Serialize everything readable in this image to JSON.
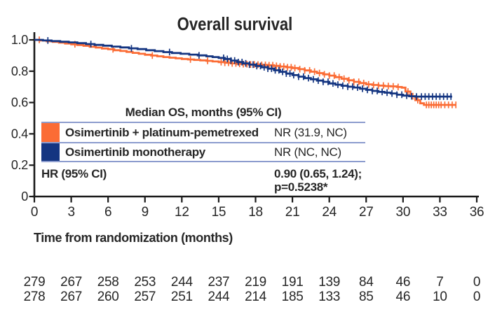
{
  "stats_table": {
    "header": "Median OS, months (95% CI)",
    "rows": [
      {
        "label": "Osimertinib + platinum-pemetrexed",
        "value": "NR (31.9, NC)"
      },
      {
        "label": "Osimertinib monotherapy",
        "value": "NR (NC, NC)"
      }
    ],
    "hr_label": "HR (95% CI)",
    "hr_value_line1": "0.90 (0.65, 1.24);",
    "hr_value_line2": "p=0.5238*"
  },
  "colors": {
    "combo_orange": "#FB6C35",
    "mono_navy": "#143581",
    "table_rule": "#8C9CCE",
    "axis": "#1A1A1A",
    "text": "#262626"
  },
  "chart_data": {
    "type": "line",
    "subtype": "kaplan-meier-step",
    "title": "Overall survival",
    "xlabel": "Time from randomization (months)",
    "ylabel": "",
    "xlim": [
      0,
      36
    ],
    "ylim": [
      0,
      1.0
    ],
    "grid": false,
    "xticks": [
      0,
      3,
      6,
      9,
      12,
      15,
      18,
      21,
      24,
      27,
      30,
      33,
      36
    ],
    "yticks": [
      {
        "label": "1.0",
        "value": 1.0
      },
      {
        "label": "0.8",
        "value": 0.8
      },
      {
        "label": "0.6",
        "value": 0.6
      },
      {
        "label": "0.4",
        "value": 0.4
      },
      {
        "label": "0.2",
        "value": 0.2
      },
      {
        "label": "0",
        "value": 0.0
      }
    ],
    "series": [
      {
        "name": "Osimertinib + platinum-pemetrexed",
        "color": "#FB6C35",
        "steps": [
          [
            0,
            1.0
          ],
          [
            0.5,
            0.996
          ],
          [
            1.0,
            0.991
          ],
          [
            1.5,
            0.987
          ],
          [
            2.0,
            0.982
          ],
          [
            2.5,
            0.977
          ],
          [
            3.0,
            0.972
          ],
          [
            3.5,
            0.967
          ],
          [
            4.0,
            0.962
          ],
          [
            4.5,
            0.956
          ],
          [
            5.0,
            0.951
          ],
          [
            5.5,
            0.945
          ],
          [
            6.0,
            0.94
          ],
          [
            6.5,
            0.934
          ],
          [
            7.0,
            0.929
          ],
          [
            7.5,
            0.923
          ],
          [
            8.0,
            0.917
          ],
          [
            8.5,
            0.911
          ],
          [
            9.0,
            0.905
          ],
          [
            9.5,
            0.9
          ],
          [
            10.0,
            0.895
          ],
          [
            10.5,
            0.89
          ],
          [
            11.0,
            0.886
          ],
          [
            11.5,
            0.882
          ],
          [
            12.0,
            0.878
          ],
          [
            12.5,
            0.875
          ],
          [
            13.0,
            0.872
          ],
          [
            13.5,
            0.869
          ],
          [
            14.0,
            0.866
          ],
          [
            14.5,
            0.862
          ],
          [
            15.0,
            0.858
          ],
          [
            15.5,
            0.854
          ],
          [
            16.0,
            0.85
          ],
          [
            16.5,
            0.847
          ],
          [
            17.0,
            0.845
          ],
          [
            17.5,
            0.843
          ],
          [
            18.0,
            0.842
          ],
          [
            18.5,
            0.84
          ],
          [
            19.0,
            0.838
          ],
          [
            19.5,
            0.834
          ],
          [
            20.0,
            0.83
          ],
          [
            20.5,
            0.825
          ],
          [
            21.0,
            0.82
          ],
          [
            21.5,
            0.813
          ],
          [
            22.0,
            0.805
          ],
          [
            22.5,
            0.797
          ],
          [
            23.0,
            0.788
          ],
          [
            23.5,
            0.78
          ],
          [
            24.0,
            0.772
          ],
          [
            24.5,
            0.762
          ],
          [
            25.0,
            0.752
          ],
          [
            25.5,
            0.742
          ],
          [
            26.0,
            0.732
          ],
          [
            26.5,
            0.724
          ],
          [
            27.0,
            0.716
          ],
          [
            27.5,
            0.712
          ],
          [
            28.0,
            0.708
          ],
          [
            28.5,
            0.705
          ],
          [
            29.0,
            0.703
          ],
          [
            29.5,
            0.699
          ],
          [
            29.9,
            0.695
          ],
          [
            30.2,
            0.67
          ],
          [
            30.6,
            0.64
          ],
          [
            31.0,
            0.615
          ],
          [
            31.4,
            0.595
          ],
          [
            31.7,
            0.585
          ],
          [
            34.3,
            0.585
          ]
        ],
        "censor_times": [
          0.4,
          3.3,
          6.4,
          9.6,
          12.7,
          14.1,
          15.2,
          15.5,
          15.8,
          16.1,
          16.4,
          16.7,
          17.0,
          17.3,
          17.6,
          17.9,
          18.2,
          18.5,
          18.8,
          19.1,
          19.4,
          19.7,
          20.0,
          20.3,
          20.6,
          20.9,
          21.2,
          21.6,
          22.0,
          22.4,
          22.8,
          23.2,
          23.6,
          24.0,
          24.4,
          24.8,
          25.2,
          25.6,
          26.0,
          26.4,
          26.8,
          27.2,
          27.6,
          28.0,
          28.4,
          28.8,
          29.2,
          29.6,
          30.4,
          30.8,
          31.2,
          31.9,
          32.1,
          32.3,
          32.5,
          32.7,
          32.9,
          33.1,
          33.4,
          33.7,
          34.0,
          34.3
        ],
        "median_os": "NR (31.9, NC)",
        "at_risk": [
          279,
          267,
          258,
          253,
          244,
          237,
          219,
          191,
          139,
          84,
          46,
          7,
          0
        ]
      },
      {
        "name": "Osimertinib monotherapy",
        "color": "#143581",
        "steps": [
          [
            0,
            1.0
          ],
          [
            0.7,
            0.996
          ],
          [
            1.4,
            0.992
          ],
          [
            2.1,
            0.988
          ],
          [
            2.8,
            0.984
          ],
          [
            3.5,
            0.979
          ],
          [
            4.2,
            0.973
          ],
          [
            4.9,
            0.968
          ],
          [
            5.6,
            0.963
          ],
          [
            6.3,
            0.957
          ],
          [
            7.0,
            0.952
          ],
          [
            7.7,
            0.946
          ],
          [
            8.4,
            0.941
          ],
          [
            9.1,
            0.934
          ],
          [
            9.8,
            0.928
          ],
          [
            10.5,
            0.922
          ],
          [
            11.2,
            0.916
          ],
          [
            11.9,
            0.911
          ],
          [
            12.6,
            0.906
          ],
          [
            13.3,
            0.901
          ],
          [
            14.0,
            0.895
          ],
          [
            14.5,
            0.89
          ],
          [
            15.0,
            0.885
          ],
          [
            15.5,
            0.878
          ],
          [
            16.0,
            0.868
          ],
          [
            16.5,
            0.858
          ],
          [
            17.0,
            0.85
          ],
          [
            17.5,
            0.842
          ],
          [
            18.0,
            0.833
          ],
          [
            18.5,
            0.825
          ],
          [
            19.0,
            0.816
          ],
          [
            19.5,
            0.806
          ],
          [
            20.0,
            0.796
          ],
          [
            20.5,
            0.785
          ],
          [
            21.0,
            0.775
          ],
          [
            21.5,
            0.765
          ],
          [
            22.0,
            0.756
          ],
          [
            22.5,
            0.748
          ],
          [
            23.0,
            0.74
          ],
          [
            23.5,
            0.732
          ],
          [
            24.0,
            0.722
          ],
          [
            24.5,
            0.714
          ],
          [
            25.0,
            0.707
          ],
          [
            25.5,
            0.701
          ],
          [
            26.0,
            0.696
          ],
          [
            26.5,
            0.688
          ],
          [
            27.0,
            0.681
          ],
          [
            27.5,
            0.674
          ],
          [
            28.0,
            0.668
          ],
          [
            28.5,
            0.663
          ],
          [
            29.0,
            0.658
          ],
          [
            29.5,
            0.65
          ],
          [
            30.0,
            0.644
          ],
          [
            30.5,
            0.64
          ],
          [
            31.0,
            0.638
          ],
          [
            34.0,
            0.638
          ]
        ],
        "censor_times": [
          1.1,
          4.6,
          7.9,
          11.0,
          13.4,
          15.4,
          15.7,
          16.0,
          16.3,
          16.6,
          16.9,
          17.2,
          17.5,
          17.8,
          18.1,
          18.4,
          18.7,
          19.0,
          19.3,
          19.6,
          19.9,
          20.2,
          20.5,
          20.8,
          21.1,
          21.5,
          21.9,
          22.3,
          22.7,
          23.1,
          23.5,
          23.9,
          24.3,
          24.7,
          25.1,
          25.5,
          25.9,
          26.3,
          26.7,
          27.1,
          27.5,
          27.9,
          28.3,
          28.7,
          29.1,
          29.5,
          29.9,
          30.3,
          30.7,
          31.1,
          31.5,
          31.8,
          32.1,
          32.4,
          32.7,
          33.0,
          33.3,
          33.6,
          33.9
        ],
        "median_os": "NR (NC, NC)",
        "at_risk": [
          278,
          267,
          260,
          257,
          251,
          244,
          214,
          185,
          133,
          85,
          46,
          10,
          0
        ]
      }
    ],
    "hr_annotation": "HR (95% CI) 0.90 (0.65, 1.24); p=0.5238*",
    "legend_position": "overlay-table-lower-left",
    "risk_table_times": [
      0,
      3,
      6,
      9,
      12,
      15,
      18,
      21,
      24,
      27,
      30,
      33,
      36
    ]
  }
}
